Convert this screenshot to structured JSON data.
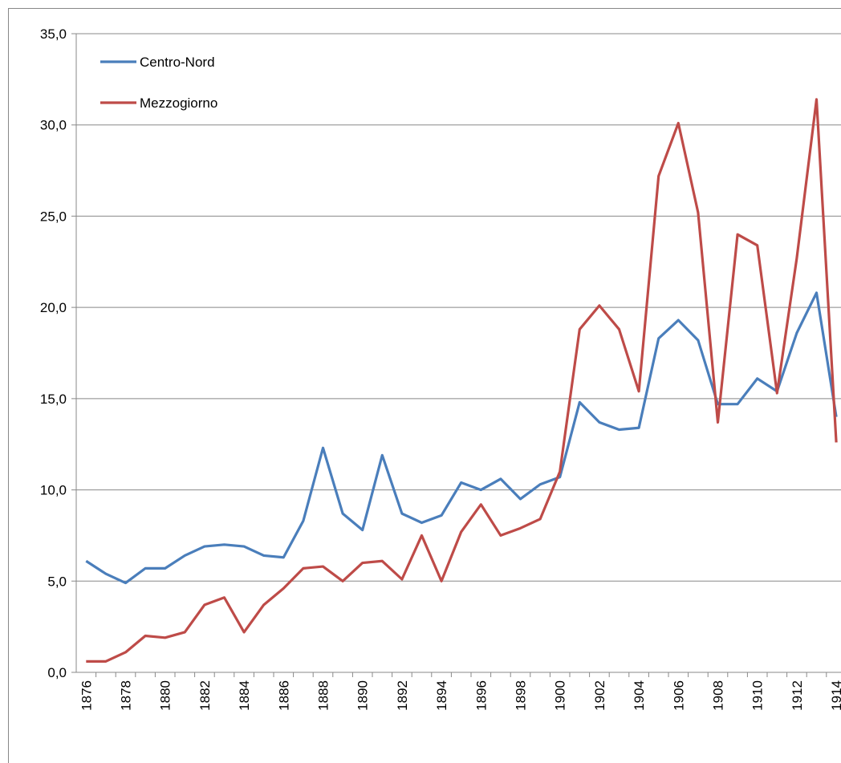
{
  "chart_data": {
    "type": "line",
    "categories": [
      "1876",
      null,
      "1878",
      null,
      "1880",
      null,
      "1882",
      null,
      "1884",
      null,
      "1886",
      null,
      "1888",
      null,
      "1890",
      null,
      "1892",
      null,
      "1894",
      null,
      "1896",
      null,
      "1898",
      null,
      "1900",
      null,
      "1902",
      null,
      "1904",
      null,
      "1906",
      null,
      "1908",
      null,
      "1910",
      null,
      "1912",
      null,
      "1914"
    ],
    "series": [
      {
        "name": "Centro-Nord",
        "color": "#4a7ebb",
        "values": [
          6.1,
          5.4,
          4.9,
          5.7,
          5.7,
          6.4,
          6.9,
          7.0,
          6.9,
          6.4,
          6.3,
          8.3,
          12.3,
          8.7,
          7.8,
          11.9,
          8.7,
          8.2,
          8.6,
          10.4,
          10.0,
          10.6,
          9.5,
          10.3,
          10.7,
          14.8,
          13.7,
          13.3,
          13.4,
          18.3,
          19.3,
          18.2,
          14.7,
          14.7,
          16.1,
          15.4,
          18.6,
          20.8,
          14.0
        ]
      },
      {
        "name": "Mezzogiorno",
        "color": "#be4b48",
        "values": [
          0.6,
          0.6,
          1.1,
          2.0,
          1.9,
          2.2,
          3.7,
          4.1,
          2.2,
          3.7,
          4.6,
          5.7,
          5.8,
          5.0,
          6.0,
          6.1,
          5.1,
          7.5,
          5.0,
          7.7,
          9.2,
          7.5,
          7.9,
          8.4,
          11.0,
          18.8,
          20.1,
          18.8,
          15.4,
          27.2,
          30.1,
          25.2,
          13.7,
          24.0,
          23.4,
          15.3,
          22.7,
          31.4,
          12.6
        ]
      }
    ],
    "ylim": [
      0,
      35
    ],
    "yticks": [
      {
        "value": 0,
        "label": "0,0"
      },
      {
        "value": 5,
        "label": "5,0"
      },
      {
        "value": 10,
        "label": "10,0"
      },
      {
        "value": 15,
        "label": "15,0"
      },
      {
        "value": 20,
        "label": "20,0"
      },
      {
        "value": 25,
        "label": "25,0"
      },
      {
        "value": 30,
        "label": "30,0"
      },
      {
        "value": 35,
        "label": "35,0"
      }
    ],
    "grid": true,
    "legend": "top-left"
  }
}
